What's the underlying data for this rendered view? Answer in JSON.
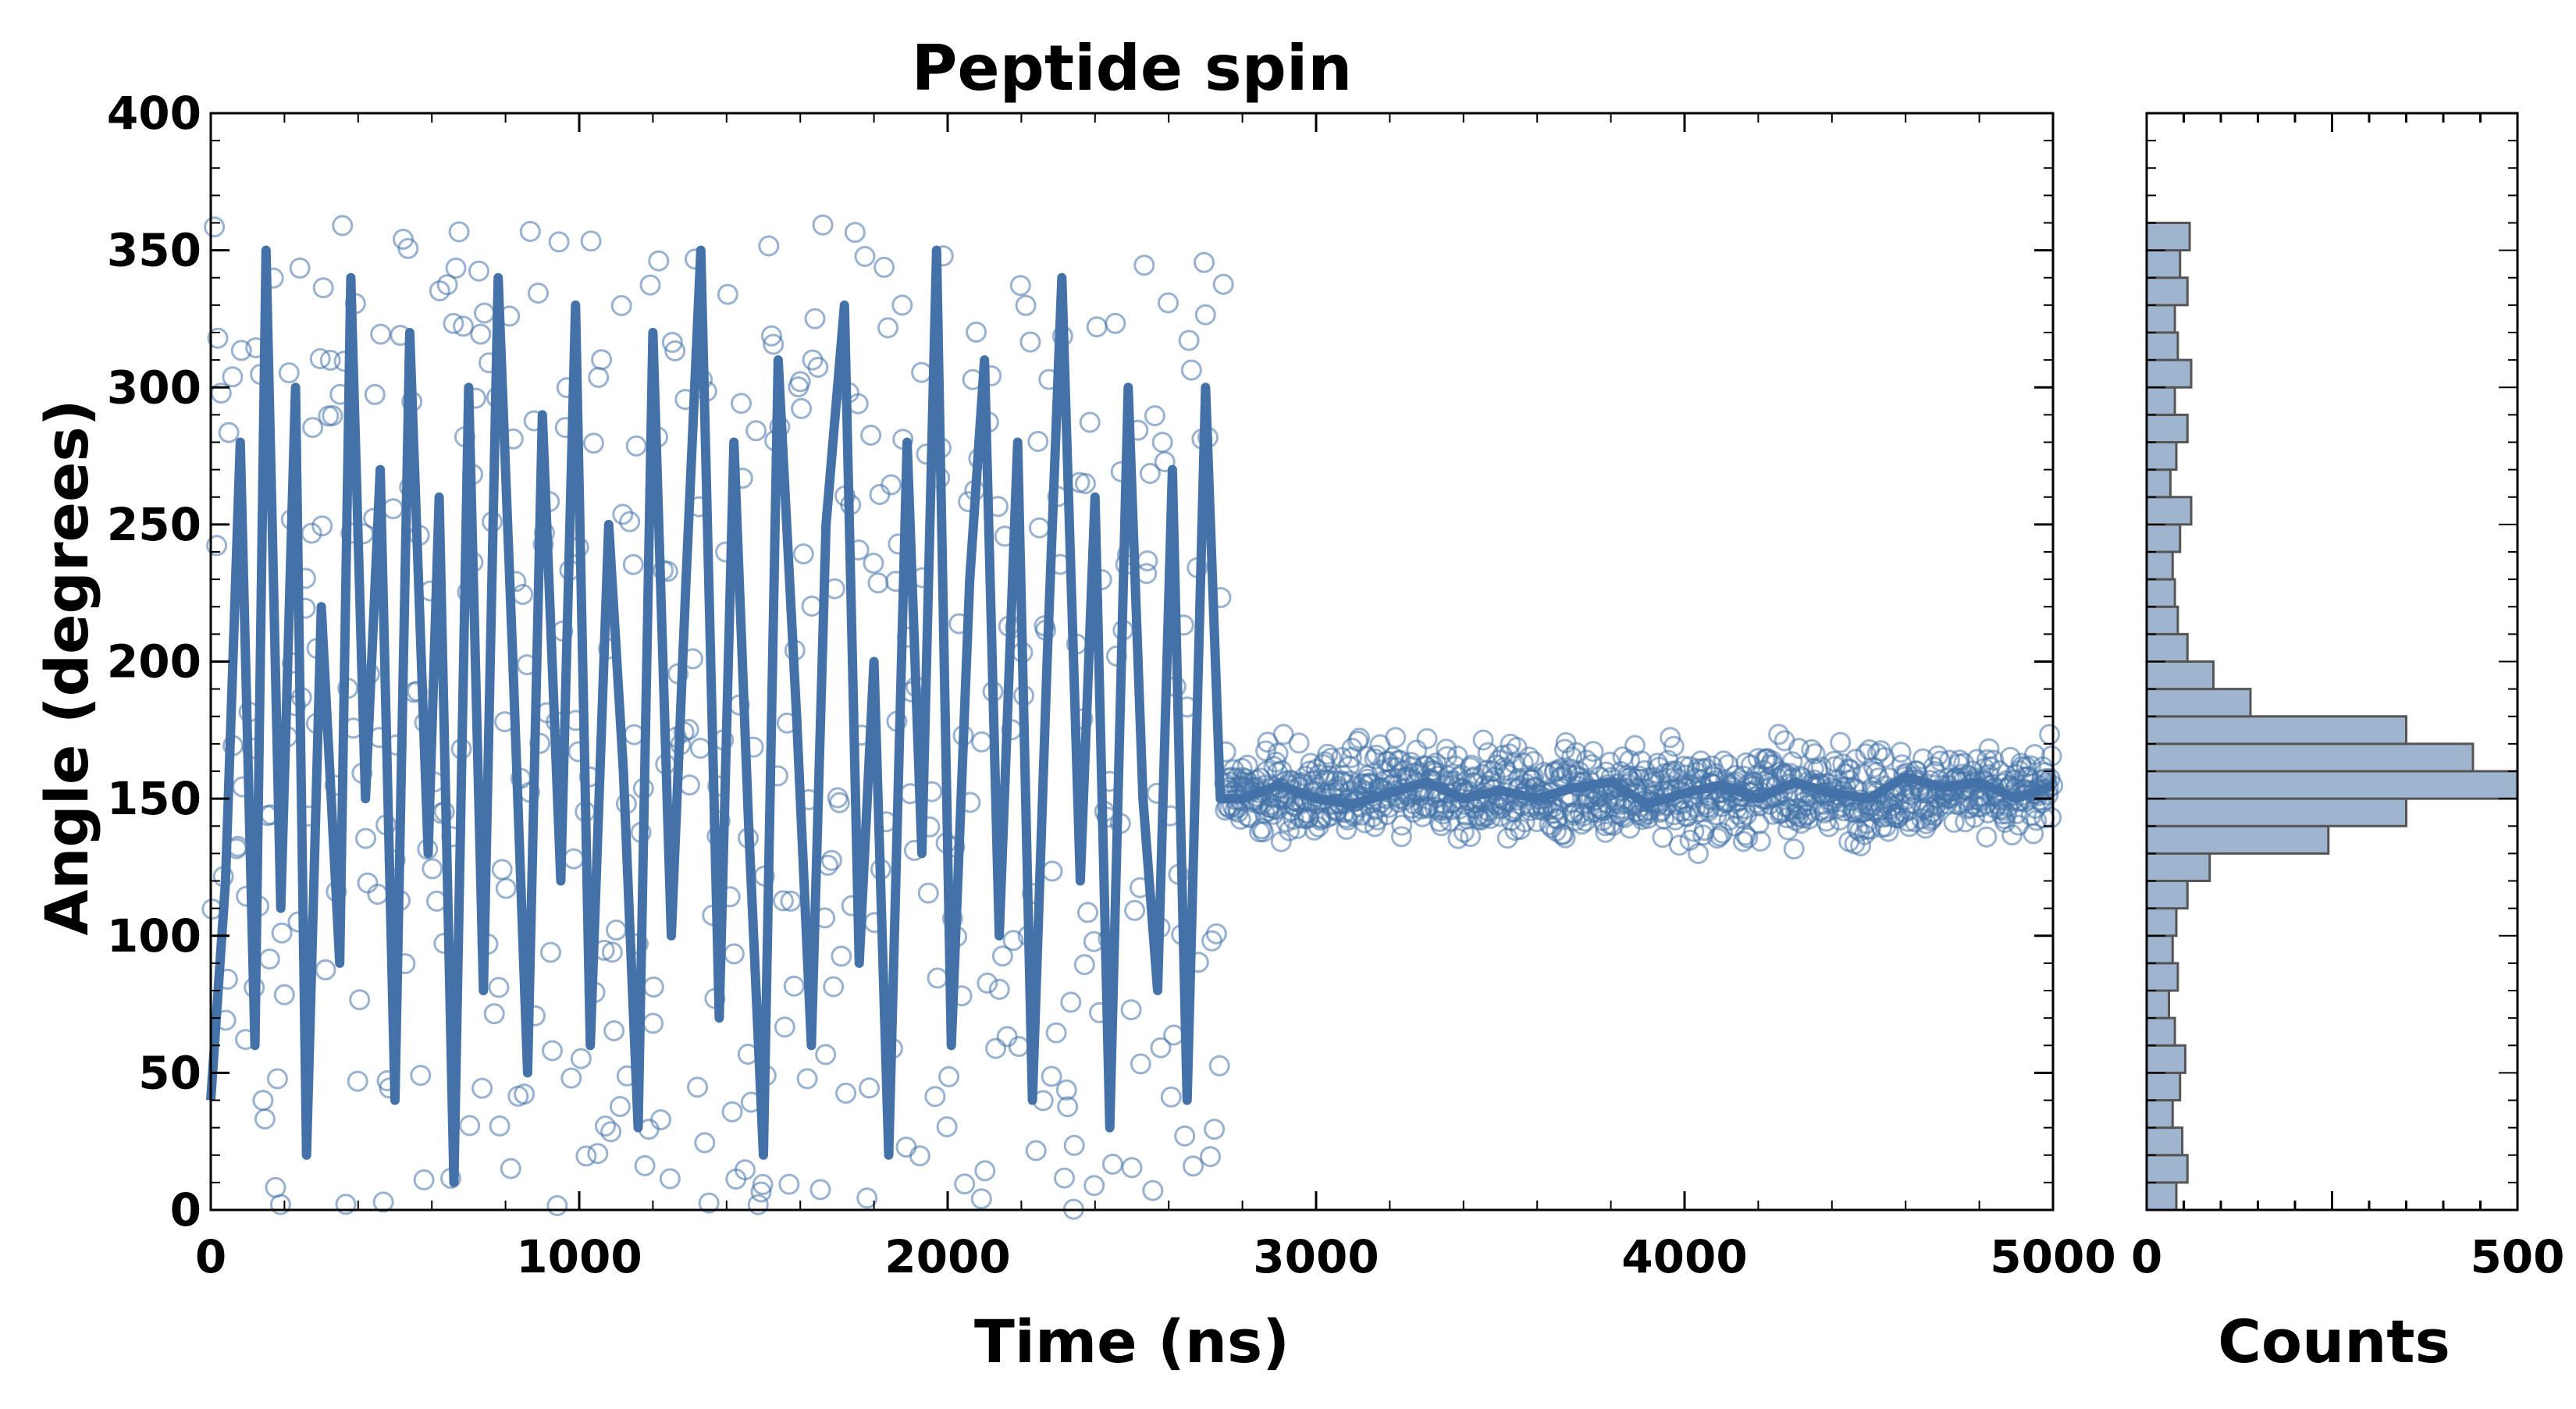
{
  "chart_data": [
    {
      "type": "scatter",
      "title": "Peptide spin",
      "xlabel": "Time (ns)",
      "ylabel": "Angle (degrees)",
      "xlim": [
        0,
        5000
      ],
      "ylim": [
        0,
        400
      ],
      "xticks": [
        0,
        1000,
        2000,
        3000,
        4000,
        5000
      ],
      "yticks": [
        0,
        50,
        100,
        150,
        200,
        250,
        300,
        350,
        400
      ],
      "grid": false,
      "color": "#4472a8",
      "description_of_data": "raw angle samples (open circles) with a smoothed trace (thick line); angles scatter uniformly 0-360 degrees until about 2750 ns, then settle near 150 degrees",
      "regimes": [
        {
          "x_start": 0,
          "x_end": 2750,
          "behavior": "uniform",
          "y_min": 0,
          "y_max": 360,
          "n_points": 460
        },
        {
          "x_start": 2750,
          "x_end": 5000,
          "behavior": "stable",
          "y_center": 152,
          "y_spread": 22,
          "n_points": 1050
        }
      ],
      "line_samples": [
        [
          0,
          40
        ],
        [
          40,
          120
        ],
        [
          80,
          280
        ],
        [
          120,
          60
        ],
        [
          150,
          350
        ],
        [
          190,
          110
        ],
        [
          230,
          300
        ],
        [
          260,
          20
        ],
        [
          300,
          220
        ],
        [
          350,
          90
        ],
        [
          380,
          340
        ],
        [
          420,
          150
        ],
        [
          460,
          270
        ],
        [
          500,
          40
        ],
        [
          540,
          320
        ],
        [
          590,
          130
        ],
        [
          620,
          260
        ],
        [
          660,
          10
        ],
        [
          700,
          300
        ],
        [
          740,
          80
        ],
        [
          780,
          340
        ],
        [
          820,
          200
        ],
        [
          860,
          50
        ],
        [
          900,
          290
        ],
        [
          950,
          120
        ],
        [
          990,
          330
        ],
        [
          1030,
          60
        ],
        [
          1080,
          250
        ],
        [
          1120,
          160
        ],
        [
          1160,
          30
        ],
        [
          1200,
          320
        ],
        [
          1250,
          100
        ],
        [
          1290,
          230
        ],
        [
          1330,
          350
        ],
        [
          1380,
          70
        ],
        [
          1420,
          280
        ],
        [
          1460,
          140
        ],
        [
          1500,
          20
        ],
        [
          1540,
          310
        ],
        [
          1590,
          180
        ],
        [
          1630,
          60
        ],
        [
          1670,
          250
        ],
        [
          1720,
          330
        ],
        [
          1760,
          90
        ],
        [
          1800,
          200
        ],
        [
          1840,
          20
        ],
        [
          1890,
          280
        ],
        [
          1930,
          130
        ],
        [
          1970,
          350
        ],
        [
          2010,
          60
        ],
        [
          2060,
          230
        ],
        [
          2100,
          310
        ],
        [
          2140,
          100
        ],
        [
          2190,
          280
        ],
        [
          2230,
          40
        ],
        [
          2270,
          200
        ],
        [
          2310,
          340
        ],
        [
          2360,
          120
        ],
        [
          2400,
          260
        ],
        [
          2440,
          30
        ],
        [
          2490,
          300
        ],
        [
          2530,
          150
        ],
        [
          2570,
          80
        ],
        [
          2610,
          270
        ],
        [
          2650,
          40
        ],
        [
          2700,
          300
        ],
        [
          2740,
          150
        ],
        [
          2800,
          150
        ],
        [
          2900,
          155
        ],
        [
          3000,
          150
        ],
        [
          3100,
          148
        ],
        [
          3200,
          152
        ],
        [
          3300,
          156
        ],
        [
          3400,
          150
        ],
        [
          3500,
          153
        ],
        [
          3600,
          150
        ],
        [
          3700,
          154
        ],
        [
          3800,
          156
        ],
        [
          3900,
          148
        ],
        [
          4000,
          152
        ],
        [
          4100,
          155
        ],
        [
          4200,
          150
        ],
        [
          4300,
          156
        ],
        [
          4400,
          152
        ],
        [
          4500,
          150
        ],
        [
          4600,
          158
        ],
        [
          4700,
          154
        ],
        [
          4800,
          156
        ],
        [
          4900,
          150
        ],
        [
          5000,
          155
        ]
      ]
    },
    {
      "type": "bar",
      "orientation": "horizontal",
      "xlabel": "Counts",
      "ylabel": "",
      "xlim": [
        0,
        500
      ],
      "xticks": [
        0,
        500
      ],
      "ylim": [
        0,
        400
      ],
      "bin_width": 10,
      "bins": [
        0,
        10,
        20,
        30,
        40,
        50,
        60,
        70,
        80,
        90,
        100,
        110,
        120,
        130,
        140,
        150,
        160,
        170,
        180,
        190,
        200,
        210,
        220,
        230,
        240,
        250,
        260,
        270,
        280,
        290,
        300,
        310,
        320,
        330,
        340,
        350
      ],
      "values": [
        40,
        55,
        48,
        35,
        45,
        52,
        38,
        30,
        42,
        35,
        40,
        55,
        85,
        245,
        350,
        500,
        440,
        350,
        140,
        90,
        55,
        42,
        38,
        35,
        45,
        60,
        32,
        40,
        55,
        38,
        60,
        42,
        38,
        55,
        45,
        58
      ],
      "color": "#9fb5cf",
      "edge_color": "#555555"
    }
  ]
}
